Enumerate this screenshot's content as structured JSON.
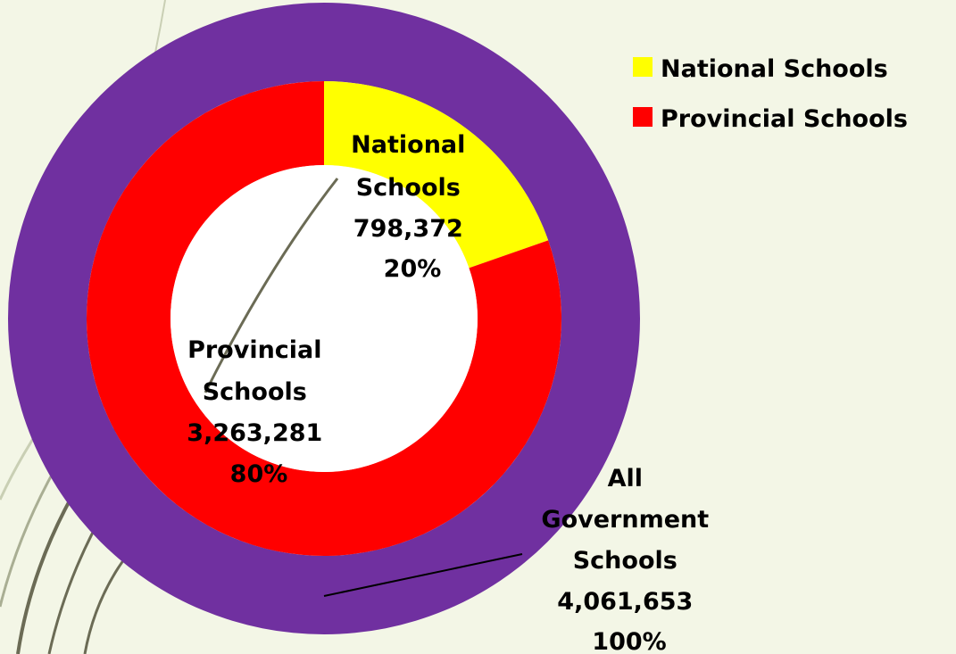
{
  "chart_data": {
    "type": "donut",
    "rings": [
      {
        "name": "inner",
        "slices": [
          {
            "label": "National Schools",
            "value": 798372,
            "value_text": "798,372",
            "percent_text": "20%",
            "color": "#ffff00"
          },
          {
            "label": "Provincial Schools",
            "value": 3263281,
            "value_text": "3,263,281",
            "percent_text": "80%",
            "color": "#ff0000"
          }
        ]
      },
      {
        "name": "outer",
        "slices": [
          {
            "label": "All Government Schools",
            "value": 4061653,
            "value_text": "4,061,653",
            "percent_text": "100%",
            "color": "#7030a0"
          }
        ]
      }
    ],
    "legend": {
      "position": "top-right",
      "entries": [
        {
          "label": "National Schools",
          "color": "#ffff00"
        },
        {
          "label": "Provincial Schools",
          "color": "#ff0000"
        }
      ]
    },
    "title": ""
  },
  "labels": {
    "national": [
      "National",
      "Schools",
      "798,372",
      "20%"
    ],
    "provincial": [
      "Provincial",
      "Schools",
      "3,263,281",
      "80%"
    ],
    "government": [
      "All",
      "Government",
      "Schools",
      "4,061,653",
      "100%"
    ]
  },
  "colors": {
    "background": "#f3f6e6",
    "leader_line": "#000000",
    "decor_stroke": "#6b6b55"
  }
}
